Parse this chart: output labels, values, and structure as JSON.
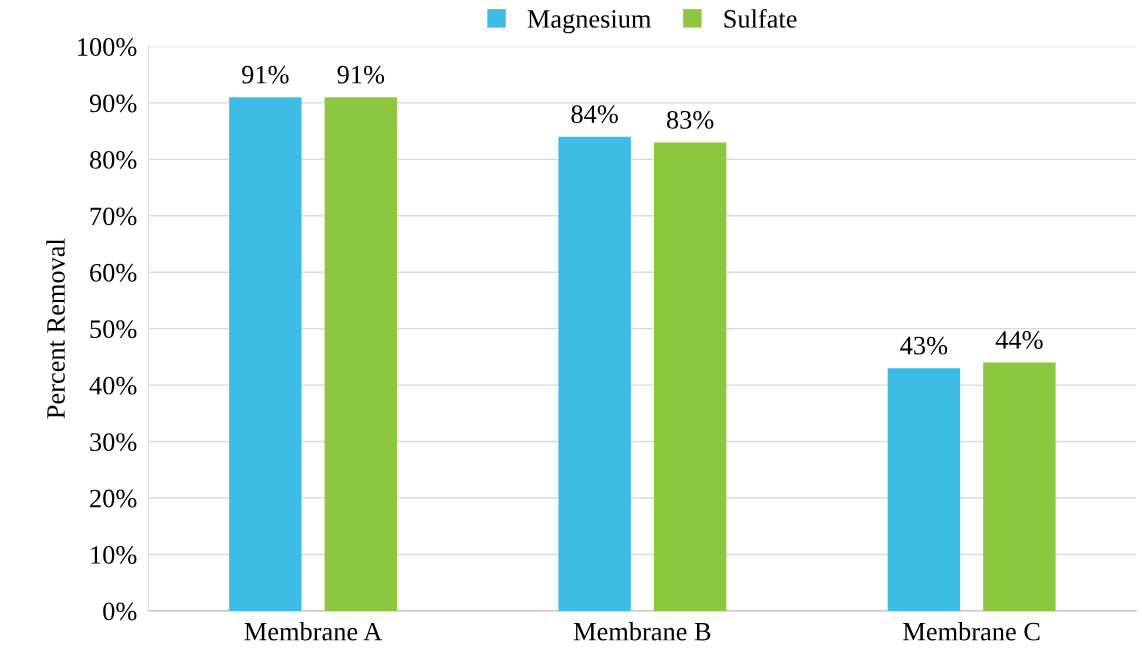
{
  "chart_data": {
    "type": "bar",
    "ylabel": "Percent Removal",
    "categories": [
      "Membrane A",
      "Membrane B",
      "Membrane C"
    ],
    "series": [
      {
        "name": "Magnesium",
        "color": "#3dbde6",
        "values": [
          91,
          84,
          43
        ],
        "value_labels": [
          "91%",
          "84%",
          "43%"
        ]
      },
      {
        "name": "Sulfate",
        "color": "#8dc63f",
        "values": [
          91,
          83,
          44
        ],
        "value_labels": [
          "91%",
          "83%",
          "44%"
        ]
      }
    ],
    "ylim": [
      0,
      100
    ],
    "yticks": [
      {
        "value": 0,
        "label": "0%"
      },
      {
        "value": 10,
        "label": "10%"
      },
      {
        "value": 20,
        "label": "20%"
      },
      {
        "value": 30,
        "label": "30%"
      },
      {
        "value": 40,
        "label": "40%"
      },
      {
        "value": 50,
        "label": "50%"
      },
      {
        "value": 60,
        "label": "60%"
      },
      {
        "value": 70,
        "label": "70%"
      },
      {
        "value": 80,
        "label": "80%"
      },
      {
        "value": 90,
        "label": "90%"
      },
      {
        "value": 100,
        "label": "100%"
      }
    ],
    "grid": "y",
    "legend": "top"
  }
}
